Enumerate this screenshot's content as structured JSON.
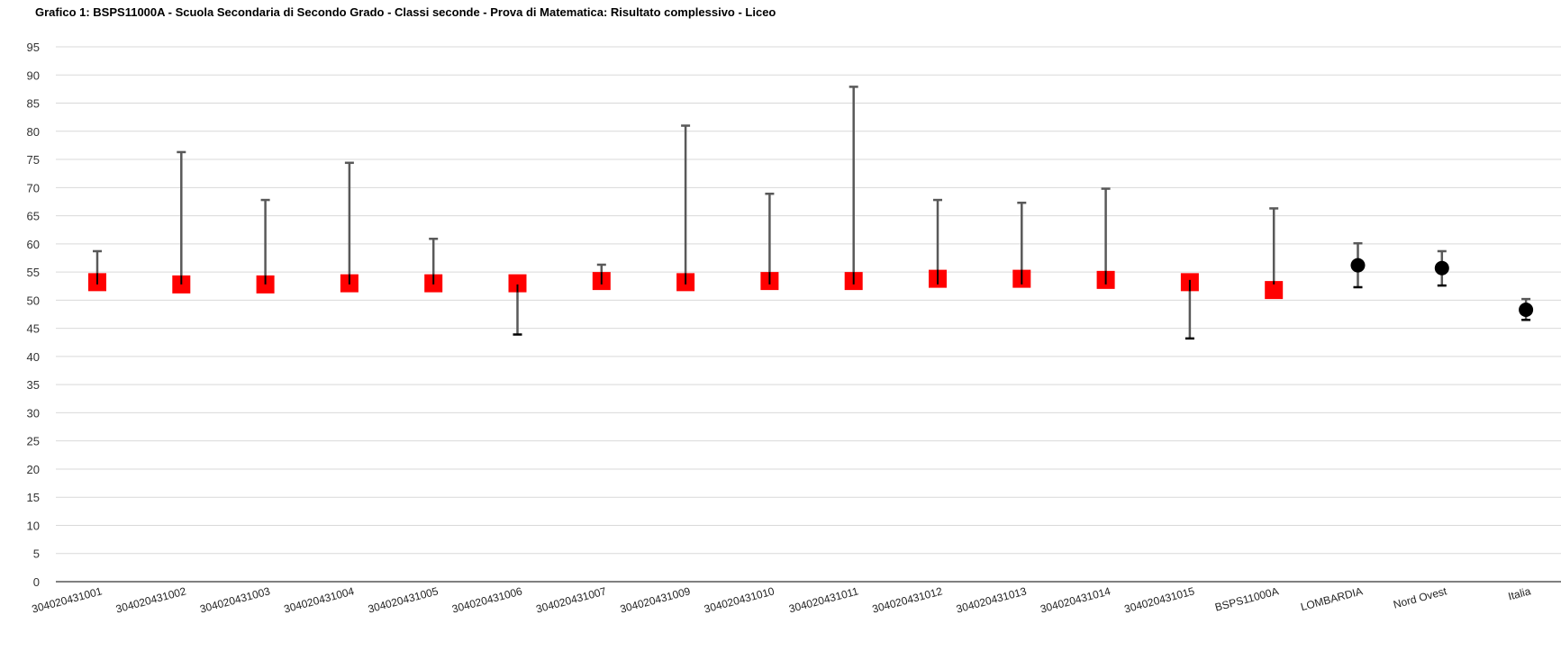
{
  "chart_data": {
    "type": "scatter",
    "title": "Grafico 1: BSPS11000A - Scuola Secondaria di Secondo Grado - Classi seconde - Prova di Matematica: Risultato complessivo - Liceo",
    "xlabel": "",
    "ylabel": "",
    "ylim": [
      0,
      95
    ],
    "ytick_step": 5,
    "grid": true,
    "categories": [
      "304020431001",
      "304020431002",
      "304020431003",
      "304020431004",
      "304020431005",
      "304020431006",
      "304020431007",
      "304020431009",
      "304020431010",
      "304020431011",
      "304020431012",
      "304020431013",
      "304020431014",
      "304020431015",
      "BSPS11000A",
      "LOMBARDIA",
      "Nord Ovest",
      "Italia"
    ],
    "markers": [
      "square",
      "square",
      "square",
      "square",
      "square",
      "square",
      "square",
      "square",
      "square",
      "square",
      "square",
      "square",
      "square",
      "square",
      "square",
      "circle",
      "circle",
      "circle"
    ],
    "marker_colors": {
      "square": "#ff0000",
      "circle": "#000000"
    },
    "values": [
      53.2,
      52.8,
      52.8,
      53.0,
      53.0,
      53.0,
      53.4,
      53.2,
      53.4,
      53.4,
      53.8,
      53.8,
      53.6,
      53.2,
      51.8,
      56.2,
      55.7,
      48.3
    ],
    "upper": [
      58.7,
      76.3,
      67.8,
      74.4,
      60.9,
      52.8,
      56.3,
      81.0,
      68.9,
      87.9,
      67.8,
      67.3,
      69.8,
      53.6,
      66.3,
      60.1,
      58.7,
      50.2
    ],
    "lower": [
      52.8,
      52.8,
      52.8,
      52.8,
      52.8,
      43.9,
      52.8,
      52.8,
      52.8,
      52.8,
      52.8,
      52.8,
      52.8,
      43.2,
      52.8,
      52.3,
      52.6,
      46.5
    ]
  },
  "colors": {
    "grid": "#d9d9d9",
    "axis": "#000000",
    "whisker": "#595959",
    "whisker_region": "#000000"
  }
}
